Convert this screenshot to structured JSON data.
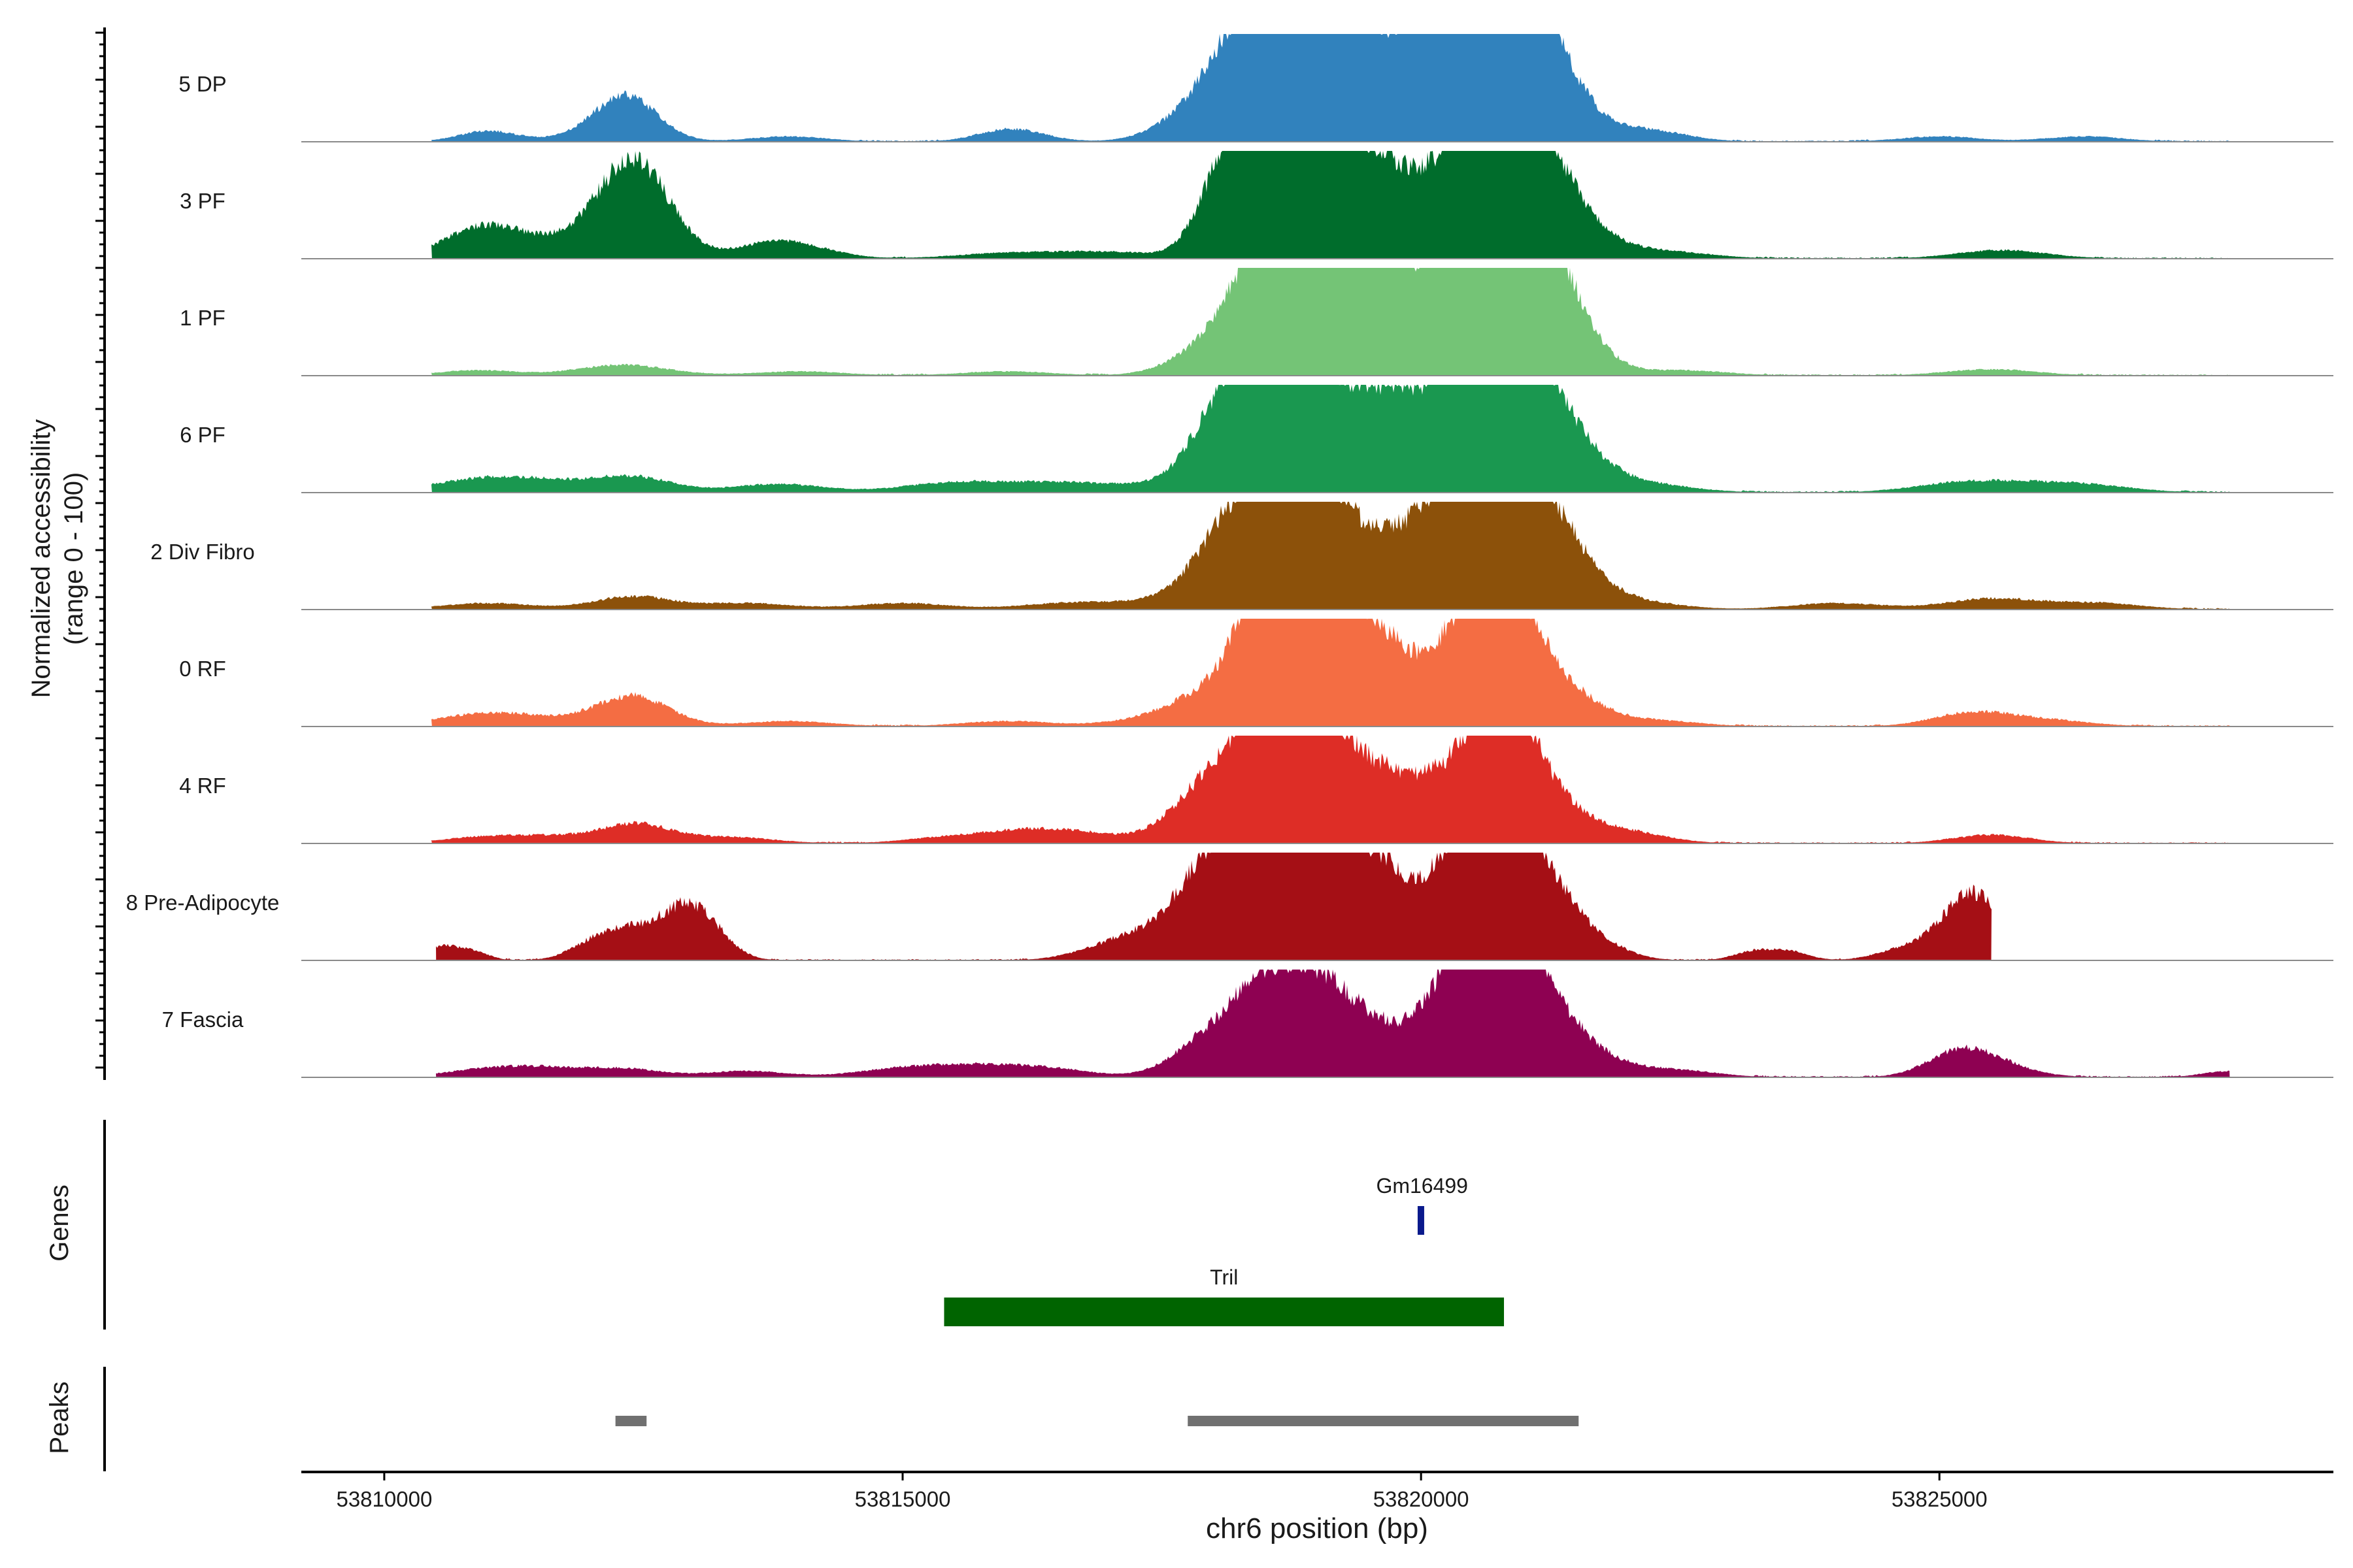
{
  "chart_data": {
    "type": "area",
    "x_range": [
      53809200,
      53828800
    ],
    "y_range": [
      0,
      100
    ],
    "ylabel_line1": "Normalized accessibility",
    "ylabel_line2": "(range 0 - 100)",
    "xlabel": "chr6 position (bp)",
    "x_ticks": [
      {
        "value": 53810000,
        "label": "53810000"
      },
      {
        "value": 53815000,
        "label": "53815000"
      },
      {
        "value": 53820000,
        "label": "53820000"
      },
      {
        "value": 53825000,
        "label": "53825000"
      }
    ],
    "series": [
      {
        "name": "5 DP",
        "color": "#3182bd",
        "extent": [
          53810460,
          53827800
        ],
        "peaks": [
          [
            53811000,
            10,
            45
          ],
          [
            53812200,
            12,
            60
          ],
          [
            53812350,
            32,
            45
          ],
          [
            53813900,
            5,
            60
          ],
          [
            53816050,
            12,
            50
          ],
          [
            53818100,
            40,
            70
          ],
          [
            53818400,
            60,
            60
          ],
          [
            53818700,
            55,
            50
          ],
          [
            53818900,
            95,
            55
          ],
          [
            53819100,
            45,
            45
          ],
          [
            53819400,
            40,
            50
          ],
          [
            53819750,
            45,
            55
          ],
          [
            53820200,
            60,
            55
          ],
          [
            53820500,
            70,
            50
          ],
          [
            53820800,
            95,
            65
          ],
          [
            53820950,
            60,
            50
          ],
          [
            53821300,
            30,
            60
          ],
          [
            53822200,
            10,
            60
          ],
          [
            53825000,
            5,
            60
          ],
          [
            53826400,
            5,
            60
          ]
        ]
      },
      {
        "name": "3 PF",
        "color": "#006d2c",
        "extent": [
          53810460,
          53827800
        ],
        "peaks": [
          [
            53810950,
            28,
            60
          ],
          [
            53811600,
            10,
            70
          ],
          [
            53812300,
            50,
            55
          ],
          [
            53812500,
            45,
            50
          ],
          [
            53813700,
            10,
            60
          ],
          [
            53814000,
            8,
            60
          ],
          [
            53816000,
            5,
            80
          ],
          [
            53817000,
            6,
            80
          ],
          [
            53818100,
            65,
            40
          ],
          [
            53818400,
            60,
            45
          ],
          [
            53818650,
            70,
            40
          ],
          [
            53818900,
            75,
            40
          ],
          [
            53819200,
            55,
            45
          ],
          [
            53819500,
            50,
            45
          ],
          [
            53819800,
            35,
            45
          ],
          [
            53820200,
            45,
            45
          ],
          [
            53820500,
            55,
            45
          ],
          [
            53820700,
            75,
            40
          ],
          [
            53820950,
            60,
            45
          ],
          [
            53821200,
            50,
            45
          ],
          [
            53821500,
            25,
            50
          ],
          [
            53822200,
            8,
            80
          ],
          [
            53825600,
            8,
            70
          ]
        ]
      },
      {
        "name": "1 PF",
        "color": "#74c476",
        "extent": [
          53810460,
          53827800
        ],
        "peaks": [
          [
            53810900,
            5,
            60
          ],
          [
            53812300,
            10,
            70
          ],
          [
            53814000,
            4,
            70
          ],
          [
            53816000,
            4,
            70
          ],
          [
            53818000,
            25,
            60
          ],
          [
            53818400,
            40,
            50
          ],
          [
            53818600,
            50,
            50
          ],
          [
            53818800,
            80,
            50
          ],
          [
            53819000,
            50,
            45
          ],
          [
            53819250,
            45,
            45
          ],
          [
            53819600,
            70,
            50
          ],
          [
            53819850,
            30,
            50
          ],
          [
            53820200,
            35,
            50
          ],
          [
            53820550,
            70,
            50
          ],
          [
            53820800,
            72,
            55
          ],
          [
            53821000,
            70,
            50
          ],
          [
            53821250,
            40,
            50
          ],
          [
            53821500,
            20,
            50
          ],
          [
            53822500,
            5,
            70
          ],
          [
            53825500,
            6,
            70
          ]
        ]
      },
      {
        "name": "6 PF",
        "color": "#1a9850",
        "extent": [
          53810460,
          53827800
        ],
        "peaks": [
          [
            53810900,
            10,
            80
          ],
          [
            53811500,
            8,
            80
          ],
          [
            53812400,
            14,
            60
          ],
          [
            53813800,
            8,
            70
          ],
          [
            53815500,
            9,
            80
          ],
          [
            53816500,
            8,
            80
          ],
          [
            53817500,
            6,
            80
          ],
          [
            53818000,
            45,
            45
          ],
          [
            53818300,
            55,
            45
          ],
          [
            53818500,
            70,
            40
          ],
          [
            53818800,
            62,
            40
          ],
          [
            53819100,
            52,
            40
          ],
          [
            53819400,
            35,
            45
          ],
          [
            53819650,
            50,
            45
          ],
          [
            53819950,
            30,
            45
          ],
          [
            53820200,
            40,
            45
          ],
          [
            53820500,
            55,
            45
          ],
          [
            53820750,
            55,
            45
          ],
          [
            53821000,
            70,
            45
          ],
          [
            53821250,
            35,
            50
          ],
          [
            53821500,
            20,
            50
          ],
          [
            53822000,
            10,
            80
          ],
          [
            53825300,
            10,
            80
          ],
          [
            53826300,
            8,
            80
          ]
        ]
      },
      {
        "name": "2 Div Fibro",
        "color": "#8c510a",
        "extent": [
          53810460,
          53827800
        ],
        "peaks": [
          [
            53811000,
            6,
            70
          ],
          [
            53812400,
            12,
            60
          ],
          [
            53813500,
            6,
            70
          ],
          [
            53815000,
            6,
            70
          ],
          [
            53816500,
            5,
            70
          ],
          [
            53817300,
            6,
            70
          ],
          [
            53818000,
            38,
            50
          ],
          [
            53818300,
            55,
            45
          ],
          [
            53818600,
            48,
            45
          ],
          [
            53818900,
            65,
            45
          ],
          [
            53819100,
            45,
            45
          ],
          [
            53819500,
            35,
            50
          ],
          [
            53819800,
            25,
            50
          ],
          [
            53820200,
            55,
            50
          ],
          [
            53820450,
            50,
            50
          ],
          [
            53820700,
            68,
            45
          ],
          [
            53821000,
            65,
            50
          ],
          [
            53821300,
            35,
            50
          ],
          [
            53821500,
            15,
            50
          ],
          [
            53822000,
            8,
            70
          ],
          [
            53824000,
            6,
            70
          ],
          [
            53825500,
            10,
            70
          ],
          [
            53826500,
            6,
            70
          ]
        ]
      },
      {
        "name": "0 RF",
        "color": "#f46d43",
        "extent": [
          53810460,
          53827800
        ],
        "peaks": [
          [
            53810900,
            10,
            70
          ],
          [
            53811500,
            6,
            70
          ],
          [
            53812400,
            28,
            55
          ],
          [
            53813900,
            5,
            70
          ],
          [
            53816000,
            5,
            70
          ],
          [
            53817500,
            8,
            70
          ],
          [
            53818000,
            28,
            55
          ],
          [
            53818450,
            85,
            40
          ],
          [
            53818700,
            55,
            45
          ],
          [
            53818950,
            70,
            40
          ],
          [
            53819150,
            45,
            40
          ],
          [
            53819450,
            60,
            45
          ],
          [
            53819700,
            30,
            45
          ],
          [
            53820200,
            40,
            50
          ],
          [
            53820600,
            55,
            50
          ],
          [
            53820700,
            70,
            40
          ],
          [
            53820900,
            45,
            45
          ],
          [
            53821200,
            25,
            50
          ],
          [
            53821500,
            15,
            50
          ],
          [
            53822200,
            6,
            70
          ],
          [
            53825300,
            12,
            60
          ],
          [
            53826000,
            6,
            70
          ]
        ]
      },
      {
        "name": "4 RF",
        "color": "#de2d26",
        "extent": [
          53810460,
          53827800
        ],
        "peaks": [
          [
            53811000,
            6,
            70
          ],
          [
            53811800,
            6,
            70
          ],
          [
            53812450,
            16,
            50
          ],
          [
            53813300,
            6,
            70
          ],
          [
            53815500,
            6,
            70
          ],
          [
            53816200,
            10,
            60
          ],
          [
            53816800,
            8,
            60
          ],
          [
            53817800,
            30,
            50
          ],
          [
            53818100,
            38,
            45
          ],
          [
            53818450,
            70,
            40
          ],
          [
            53818700,
            52,
            40
          ],
          [
            53818950,
            70,
            40
          ],
          [
            53819200,
            40,
            45
          ],
          [
            53819500,
            35,
            45
          ],
          [
            53819800,
            28,
            45
          ],
          [
            53820200,
            38,
            45
          ],
          [
            53820600,
            55,
            45
          ],
          [
            53820800,
            70,
            40
          ],
          [
            53821050,
            40,
            45
          ],
          [
            53821400,
            20,
            50
          ],
          [
            53822000,
            10,
            60
          ],
          [
            53825500,
            8,
            60
          ]
        ]
      },
      {
        "name": "8 Pre-Adipocyte",
        "color": "#a50f15",
        "extent": [
          53810500,
          53825500
        ],
        "peaks": [
          [
            53810550,
            12,
            25
          ],
          [
            53810850,
            8,
            25
          ],
          [
            53811950,
            10,
            35
          ],
          [
            53812200,
            12,
            35
          ],
          [
            53812450,
            18,
            40
          ],
          [
            53812850,
            25,
            40
          ],
          [
            53813050,
            30,
            40
          ],
          [
            53817100,
            15,
            60
          ],
          [
            53817400,
            12,
            45
          ],
          [
            53817800,
            22,
            45
          ],
          [
            53818000,
            60,
            45
          ],
          [
            53818300,
            50,
            45
          ],
          [
            53818550,
            45,
            40
          ],
          [
            53818800,
            65,
            45
          ],
          [
            53819000,
            55,
            40
          ],
          [
            53819300,
            40,
            45
          ],
          [
            53819550,
            55,
            40
          ],
          [
            53819800,
            22,
            40
          ],
          [
            53820100,
            25,
            45
          ],
          [
            53820350,
            55,
            40
          ],
          [
            53820600,
            70,
            40
          ],
          [
            53820850,
            60,
            45
          ],
          [
            53821050,
            45,
            40
          ],
          [
            53821350,
            30,
            40
          ],
          [
            53821700,
            15,
            45
          ],
          [
            53823200,
            8,
            30
          ],
          [
            53823550,
            8,
            30
          ],
          [
            53824600,
            8,
            40
          ],
          [
            53825000,
            12,
            40
          ],
          [
            53825300,
            40,
            40
          ],
          [
            53825450,
            20,
            40
          ]
        ]
      },
      {
        "name": "7 Fascia",
        "color": "#8e0152",
        "extent": [
          53810500,
          53827800
        ],
        "peaks": [
          [
            53810900,
            6,
            60
          ],
          [
            53811500,
            8,
            60
          ],
          [
            53812300,
            8,
            60
          ],
          [
            53813500,
            6,
            60
          ],
          [
            53815000,
            8,
            70
          ],
          [
            53815800,
            10,
            70
          ],
          [
            53816500,
            6,
            60
          ],
          [
            53817800,
            18,
            50
          ],
          [
            53818100,
            28,
            45
          ],
          [
            53818450,
            50,
            40
          ],
          [
            53818700,
            38,
            45
          ],
          [
            53818950,
            48,
            40
          ],
          [
            53819250,
            38,
            45
          ],
          [
            53819550,
            25,
            45
          ],
          [
            53820000,
            30,
            45
          ],
          [
            53820300,
            45,
            40
          ],
          [
            53820550,
            50,
            40
          ],
          [
            53820700,
            95,
            40
          ],
          [
            53820850,
            60,
            45
          ],
          [
            53821100,
            42,
            45
          ],
          [
            53821400,
            25,
            50
          ],
          [
            53821750,
            10,
            60
          ],
          [
            53822500,
            6,
            60
          ],
          [
            53825200,
            20,
            50
          ],
          [
            53825500,
            10,
            60
          ],
          [
            53827800,
            6,
            40
          ]
        ]
      }
    ],
    "genes": {
      "label": "Genes",
      "items": [
        {
          "name": "Gm16499",
          "start": 53819980,
          "end": 53820040,
          "color": "#0a1a8c",
          "row": 0
        },
        {
          "name": "Tril",
          "start": 53815400,
          "end": 53820800,
          "color": "#006400",
          "row": 1
        }
      ]
    },
    "peaks_track": {
      "label": "Peaks",
      "color": "#707070",
      "regions": [
        [
          53812230,
          53812530
        ],
        [
          53817750,
          53821520
        ]
      ]
    }
  }
}
